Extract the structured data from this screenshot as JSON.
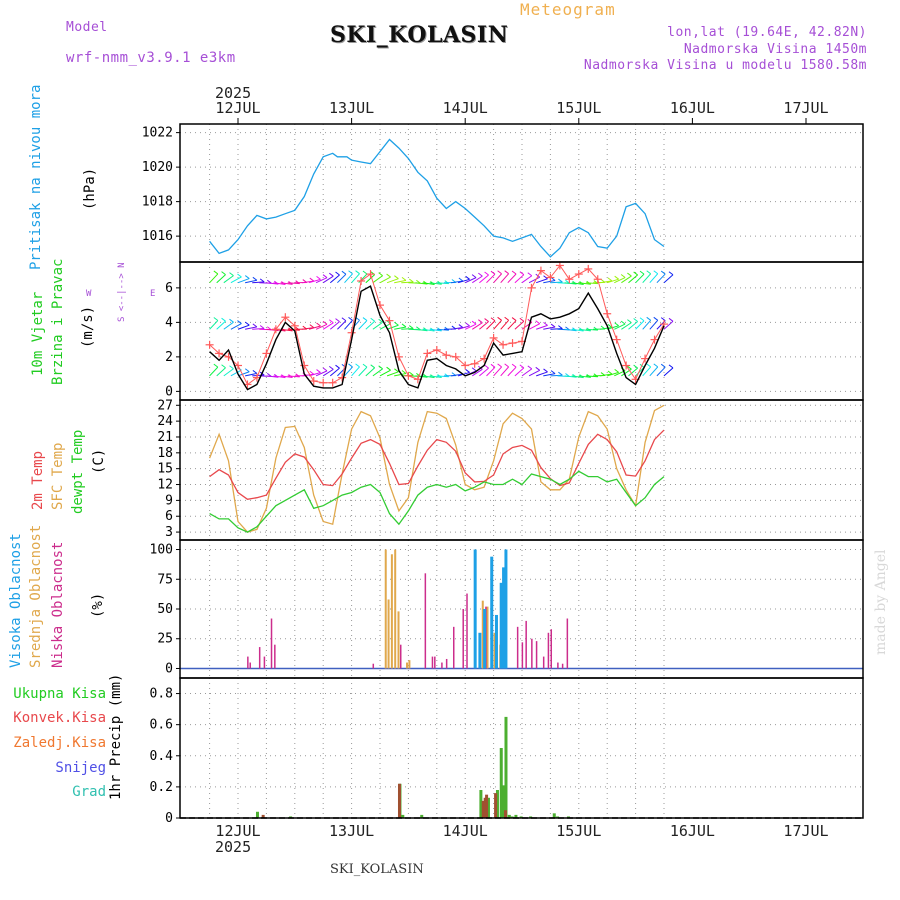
{
  "header": {
    "model_label": "Model",
    "model_name": "wrf-nmm_v3.9.1 e3km",
    "station": "SKI_KOLASIN",
    "meteogram": "Meteogram",
    "lonlat": "lon,lat (19.64E, 42.82N)",
    "elevation": "Nadmorska Visina 1450m",
    "model_elevation": "Nadmorska Visina u modelu 1580.58m",
    "year": "2025",
    "footer_station": "SKI_KOLASIN",
    "watermark": "made by Angel"
  },
  "days": [
    "12JUL",
    "13JUL",
    "14JUL",
    "15JUL",
    "16JUL",
    "17JUL"
  ],
  "panels": {
    "pressure": {
      "label1": "Pritisak na nivou mora",
      "unit": "(hPa)",
      "ticks": [
        "1016",
        "1018",
        "1020",
        "1022"
      ]
    },
    "wind": {
      "label1": "10m Vjetar",
      "label2": "Brzina i Pravac",
      "unit": "(m/s)",
      "ticks": [
        "0",
        "2",
        "4",
        "6"
      ],
      "compass_ns": "S <--|--> N",
      "compass_w": "W",
      "compass_e": "E"
    },
    "temp": {
      "label1": "2m Temp",
      "label2": "SFC Temp",
      "label3": "dewpt Temp",
      "unit": "(C)",
      "ticks": [
        "3",
        "6",
        "9",
        "12",
        "15",
        "18",
        "21",
        "24",
        "27"
      ]
    },
    "cloud": {
      "label1": "Visoka Oblacnost",
      "label2": "Srednja Oblacnost",
      "label3": "Niska Oblacnost",
      "unit": "(%)",
      "ticks": [
        "0",
        "25",
        "50",
        "75",
        "100"
      ]
    },
    "precip": {
      "labels": [
        "Ukupna Kisa",
        "Konvek.Kisa",
        "Zaledj.Kisa",
        "Snijeg",
        "Grad"
      ],
      "unit": "1hr Precip (mm)",
      "ticks": [
        "0",
        "0.2",
        "0.4",
        "0.6",
        "0.8"
      ]
    }
  },
  "colors": {
    "pressure": "#1ea0e6",
    "t2m": "#e8484c",
    "tsfc": "#e0a84c",
    "dew": "#33cc33",
    "wind": "#000000",
    "gust": "#ff5a5a",
    "cloud_high": "#1ea0e6",
    "cloud_mid": "#e0a84c",
    "cloud_low": "#cc2d8c",
    "precip_total": "#4caf30",
    "precip_conv": "#e8484c",
    "precip_frz": "#f07830",
    "snow": "#5050e6",
    "hail": "#30c0b0"
  },
  "chart_data": {
    "type": "meteogram",
    "x_unit": "hours from 12JUL 00UTC",
    "x_range": [
      -6,
      90
    ],
    "pressure": {
      "ylim": [
        1014.5,
        1022.5
      ],
      "x": [
        -6,
        -4,
        -2,
        0,
        2,
        4,
        6,
        8,
        10,
        12,
        14,
        16,
        18,
        20,
        21,
        23,
        24,
        26,
        28,
        30,
        32,
        34,
        36,
        38,
        40,
        42,
        44,
        46,
        48,
        50,
        52,
        54,
        56,
        58,
        60,
        62,
        64,
        66,
        68,
        70,
        72,
        74,
        76,
        78,
        80,
        82,
        84,
        86,
        88,
        90
      ],
      "y": [
        1015.7,
        1015.0,
        1015.2,
        1015.8,
        1016.6,
        1017.2,
        1017.0,
        1017.1,
        1017.3,
        1017.5,
        1018.3,
        1019.6,
        1020.6,
        1020.8,
        1020.6,
        1020.6,
        1020.4,
        1020.3,
        1020.2,
        1020.9,
        1021.6,
        1021.1,
        1020.5,
        1019.7,
        1019.2,
        1018.2,
        1017.6,
        1018.0,
        1017.6,
        1017.1,
        1016.6,
        1016.0,
        1015.9,
        1015.7,
        1015.9,
        1016.1,
        1015.4,
        1014.8,
        1015.3,
        1016.2,
        1016.5,
        1016.2,
        1015.4,
        1015.3,
        1016.0,
        1017.7,
        1017.9,
        1017.3,
        1015.8,
        1015.4
      ]
    },
    "wind_speed": {
      "ylim": [
        -0.5,
        7.5
      ],
      "x": [
        -6,
        -4,
        -2,
        0,
        2,
        4,
        6,
        8,
        10,
        12,
        14,
        16,
        18,
        20,
        22,
        24,
        26,
        28,
        30,
        32,
        34,
        36,
        38,
        40,
        42,
        44,
        46,
        48,
        50,
        52,
        54,
        56,
        58,
        60,
        62,
        64,
        66,
        68,
        70,
        72,
        74,
        76,
        78,
        80,
        82,
        84,
        86,
        88,
        90
      ],
      "y": [
        2.3,
        1.8,
        2.4,
        1.0,
        0.1,
        0.4,
        1.6,
        3.0,
        4.0,
        3.5,
        1.0,
        0.3,
        0.2,
        0.2,
        0.4,
        3.0,
        5.8,
        6.1,
        4.4,
        3.4,
        1.2,
        0.4,
        0.2,
        1.8,
        1.9,
        1.5,
        1.3,
        0.9,
        1.1,
        1.5,
        2.8,
        2.1,
        2.2,
        2.3,
        4.3,
        4.5,
        4.2,
        4.3,
        4.5,
        4.8,
        5.7,
        4.8,
        3.8,
        2.2,
        0.8,
        0.4,
        1.5,
        2.5,
        3.8
      ]
    },
    "wind_gust": {
      "x": [
        -6,
        -4,
        -2,
        0,
        2,
        4,
        6,
        8,
        10,
        12,
        14,
        16,
        18,
        20,
        22,
        24,
        26,
        28,
        30,
        32,
        34,
        36,
        38,
        40,
        42,
        44,
        46,
        48,
        50,
        52,
        54,
        56,
        58,
        60,
        62,
        64,
        66,
        68,
        70,
        72,
        74,
        76,
        78,
        80,
        82,
        84,
        86,
        88,
        90
      ],
      "y": [
        2.7,
        2.2,
        2.0,
        1.5,
        0.4,
        0.8,
        2.2,
        3.6,
        4.3,
        3.8,
        1.5,
        0.6,
        0.5,
        0.5,
        0.8,
        3.4,
        6.4,
        6.8,
        5.0,
        4.1,
        2.0,
        0.9,
        0.7,
        2.2,
        2.4,
        2.1,
        2.0,
        1.5,
        1.6,
        1.9,
        3.1,
        2.7,
        2.8,
        2.9,
        6.0,
        7.0,
        6.6,
        7.3,
        6.5,
        6.8,
        7.1,
        6.5,
        4.5,
        3.0,
        1.5,
        0.7,
        1.9,
        3.0,
        3.9
      ]
    },
    "temp_2m": {
      "ylim": [
        1.5,
        28
      ],
      "x": [
        -6,
        -4,
        -2,
        0,
        2,
        4,
        6,
        8,
        10,
        12,
        14,
        16,
        18,
        20,
        22,
        24,
        26,
        28,
        30,
        32,
        34,
        36,
        38,
        40,
        42,
        44,
        46,
        48,
        50,
        52,
        54,
        56,
        58,
        60,
        62,
        64,
        66,
        68,
        70,
        72,
        74,
        76,
        78,
        80,
        82,
        84,
        86,
        88,
        90
      ],
      "y": [
        13.5,
        14.8,
        13.8,
        10.5,
        9.2,
        9.5,
        10.0,
        13.2,
        16.2,
        17.8,
        17.2,
        14.8,
        12.0,
        11.8,
        14.0,
        17.0,
        19.8,
        20.5,
        19.6,
        16.0,
        12.0,
        12.2,
        15.5,
        18.5,
        20.5,
        20.0,
        18.3,
        14.2,
        12.5,
        12.6,
        13.8,
        17.8,
        19.0,
        19.4,
        18.5,
        15.2,
        13.1,
        11.8,
        12.3,
        16.0,
        19.6,
        21.5,
        20.5,
        18.2,
        13.8,
        13.6,
        16.5,
        20.5,
        22.3
      ]
    },
    "temp_sfc": {
      "x": [
        -6,
        -4,
        -2,
        0,
        2,
        4,
        6,
        8,
        10,
        12,
        14,
        16,
        18,
        20,
        22,
        24,
        26,
        28,
        30,
        32,
        34,
        36,
        38,
        40,
        42,
        44,
        46,
        48,
        50,
        52,
        54,
        56,
        58,
        60,
        62,
        64,
        66,
        68,
        70,
        72,
        74,
        76,
        78,
        80,
        82,
        84,
        86,
        88,
        90
      ],
      "y": [
        17.0,
        21.5,
        16.5,
        5.0,
        3.0,
        3.5,
        7.5,
        17.0,
        22.8,
        23.0,
        19.0,
        10.0,
        5.0,
        4.5,
        14.0,
        22.5,
        25.8,
        25.0,
        20.8,
        12.0,
        7.0,
        9.5,
        20.0,
        25.8,
        25.5,
        24.5,
        19.5,
        12.0,
        11.0,
        11.5,
        16.5,
        23.5,
        25.5,
        24.5,
        22.5,
        12.5,
        11.0,
        11.0,
        13.0,
        21.0,
        25.8,
        25.0,
        22.5,
        15.0,
        11.0,
        8.0,
        20.0,
        26.0,
        27.0
      ]
    },
    "temp_dew": {
      "x": [
        -6,
        -4,
        -2,
        0,
        2,
        4,
        6,
        8,
        10,
        12,
        14,
        16,
        18,
        20,
        22,
        24,
        26,
        28,
        30,
        32,
        34,
        36,
        38,
        40,
        42,
        44,
        46,
        48,
        50,
        52,
        54,
        56,
        58,
        60,
        62,
        64,
        66,
        68,
        70,
        72,
        74,
        76,
        78,
        80,
        82,
        84,
        86,
        88,
        90
      ],
      "y": [
        6.5,
        5.5,
        5.5,
        3.8,
        3.0,
        4.0,
        6.0,
        8.0,
        9.0,
        10.0,
        11.0,
        7.5,
        8.0,
        9.0,
        10.0,
        10.5,
        11.5,
        12.0,
        10.5,
        6.5,
        4.5,
        7.0,
        10.0,
        11.5,
        12.0,
        11.5,
        12.0,
        10.8,
        11.5,
        12.5,
        12.0,
        12.0,
        13.0,
        12.0,
        14.0,
        13.5,
        13.0,
        12.0,
        13.0,
        14.5,
        13.5,
        13.5,
        12.5,
        13.0,
        10.5,
        8.0,
        9.5,
        12.0,
        13.5
      ]
    },
    "cloud_high": {
      "ylim": [
        0,
        100
      ],
      "bars": [
        [
          50.0,
          100
        ],
        [
          51.0,
          30
        ],
        [
          52.0,
          50
        ],
        [
          53.5,
          94
        ],
        [
          54.5,
          45
        ],
        [
          55.5,
          72
        ],
        [
          56.0,
          85
        ],
        [
          56.5,
          100
        ]
      ]
    },
    "cloud_mid": {
      "bars": [
        [
          31.0,
          100
        ],
        [
          31.6,
          58
        ],
        [
          32.3,
          96
        ],
        [
          33.0,
          100
        ],
        [
          33.7,
          48
        ],
        [
          35.5,
          5
        ],
        [
          36.0,
          7
        ],
        [
          51.5,
          57
        ],
        [
          52.5,
          52
        ],
        [
          54.0,
          30
        ],
        [
          55.2,
          20
        ]
      ]
    },
    "cloud_low": {
      "bars": [
        [
          1.5,
          10
        ],
        [
          2.0,
          5
        ],
        [
          4.0,
          18
        ],
        [
          5.0,
          10
        ],
        [
          6.5,
          42
        ],
        [
          7.2,
          20
        ],
        [
          33.8,
          20
        ],
        [
          39.0,
          80
        ],
        [
          40.5,
          10
        ],
        [
          41.0,
          10
        ],
        [
          42.5,
          5
        ],
        [
          43.5,
          8
        ],
        [
          45.0,
          35
        ],
        [
          47.0,
          50
        ],
        [
          47.8,
          63
        ],
        [
          49.5,
          38
        ],
        [
          50.5,
          20
        ],
        [
          51.8,
          52
        ],
        [
          53.0,
          18
        ],
        [
          58.5,
          35
        ],
        [
          59.5,
          22
        ],
        [
          60.3,
          40
        ],
        [
          61.5,
          25
        ],
        [
          62.5,
          23
        ],
        [
          64.0,
          10
        ],
        [
          65.0,
          30
        ],
        [
          65.6,
          33
        ],
        [
          67.0,
          5
        ],
        [
          68.0,
          4
        ],
        [
          69.0,
          42
        ],
        [
          28.0,
          4
        ]
      ]
    },
    "precip_total": {
      "ylim": [
        0,
        0.9
      ],
      "bars": [
        [
          3.8,
          0.04
        ],
        [
          10.8,
          0.01
        ],
        [
          33.9,
          0.22
        ],
        [
          34.5,
          0.02
        ],
        [
          38.5,
          0.02
        ],
        [
          51.0,
          0.18
        ],
        [
          52.6,
          0.13
        ],
        [
          54.5,
          0.18
        ],
        [
          55.3,
          0.45
        ],
        [
          55.8,
          0.21
        ],
        [
          56.3,
          0.65
        ],
        [
          57.0,
          0.02
        ],
        [
          57.6,
          0.01
        ],
        [
          58.4,
          0.02
        ],
        [
          59.5,
          0.01
        ],
        [
          61.5,
          0.01
        ],
        [
          66.5,
          0.03
        ],
        [
          67.2,
          0.01
        ],
        [
          69.5,
          0.01
        ]
      ]
    },
    "precip_conv": {
      "bars": [
        [
          5.0,
          0.02
        ],
        [
          33.8,
          0.22
        ],
        [
          51.5,
          0.11
        ],
        [
          51.9,
          0.13
        ],
        [
          52.2,
          0.15
        ],
        [
          54.1,
          0.16
        ],
        [
          56.2,
          0.05
        ]
      ]
    }
  }
}
